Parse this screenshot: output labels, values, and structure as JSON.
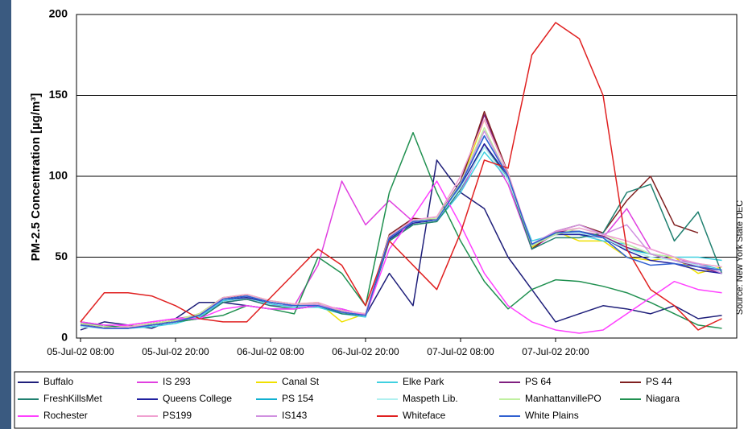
{
  "chart_data": {
    "type": "line",
    "y_label": "PM-2.5 Concentration  [µg/m³]",
    "annotation": "Source: New York State DEC",
    "categories": [
      "05-Jul-02 08:00",
      null,
      null,
      null,
      "05-Jul-02 20:00",
      null,
      null,
      null,
      "06-Jul-02 08:00",
      null,
      null,
      null,
      "06-Jul-02 20:00",
      null,
      null,
      null,
      "07-Jul-02 08:00",
      null,
      null,
      null,
      "07-Jul-02 20:00",
      null,
      null,
      null,
      null,
      null,
      null,
      null
    ],
    "ylim": [
      0,
      200
    ],
    "yticks": [
      0,
      50,
      100,
      150,
      200
    ],
    "grid": true,
    "series": [
      {
        "name": "Buffalo",
        "color": "#1f1f7a",
        "values": [
          5,
          10,
          8,
          6,
          12,
          22,
          22,
          20,
          18,
          18,
          20,
          18,
          14,
          40,
          20,
          110,
          90,
          80,
          50,
          30,
          10,
          15,
          20,
          18,
          15,
          20,
          12,
          14
        ]
      },
      {
        "name": "IS 293",
        "color": "#e040e0",
        "values": [
          8,
          6,
          8,
          10,
          12,
          14,
          22,
          24,
          20,
          20,
          45,
          97,
          70,
          85,
          72,
          73,
          90,
          120,
          95,
          55,
          65,
          65,
          62,
          80,
          55,
          50,
          45,
          40
        ]
      },
      {
        "name": "Canal St",
        "color": "#f0e000",
        "values": [
          9,
          7,
          7,
          9,
          11,
          15,
          25,
          27,
          23,
          21,
          22,
          10,
          15,
          60,
          70,
          72,
          96,
          135,
          102,
          56,
          66,
          60,
          60,
          50,
          48,
          50,
          40,
          44
        ]
      },
      {
        "name": "Elke Park",
        "color": "#40d0e0",
        "values": [
          7,
          6,
          6,
          7,
          9,
          13,
          23,
          25,
          21,
          19,
          19,
          15,
          13,
          60,
          70,
          72,
          90,
          115,
          98,
          60,
          64,
          64,
          60,
          58,
          52,
          50,
          50,
          48
        ]
      },
      {
        "name": "PS 64",
        "color": "#802080",
        "values": [
          8,
          7,
          6,
          8,
          10,
          14,
          24,
          26,
          22,
          20,
          21,
          16,
          14,
          63,
          73,
          74,
          97,
          138,
          101,
          55,
          66,
          66,
          63,
          56,
          52,
          48,
          44,
          40
        ]
      },
      {
        "name": "PS 44",
        "color": "#802020",
        "values": [
          9,
          7,
          6,
          9,
          11,
          15,
          25,
          26,
          22,
          20,
          20,
          17,
          15,
          64,
          74,
          73,
          96,
          140,
          102,
          55,
          66,
          70,
          65,
          85,
          100,
          70,
          65,
          null
        ]
      },
      {
        "name": "FreshKillsMet",
        "color": "#208070",
        "values": [
          10,
          7,
          7,
          8,
          10,
          12,
          22,
          24,
          20,
          18,
          20,
          15,
          14,
          60,
          70,
          72,
          92,
          120,
          98,
          55,
          62,
          62,
          65,
          90,
          95,
          60,
          78,
          40
        ]
      },
      {
        "name": "Queens College",
        "color": "#2020a0",
        "values": [
          8,
          6,
          6,
          8,
          10,
          14,
          24,
          25,
          22,
          20,
          20,
          16,
          14,
          61,
          71,
          73,
          94,
          120,
          100,
          57,
          64,
          64,
          62,
          54,
          48,
          46,
          42,
          40
        ]
      },
      {
        "name": "PS 154",
        "color": "#10b0d0",
        "values": [
          8,
          6,
          6,
          8,
          10,
          14,
          24,
          26,
          22,
          20,
          20,
          16,
          14,
          62,
          72,
          73,
          95,
          125,
          100,
          58,
          65,
          66,
          62,
          55,
          52,
          48,
          46,
          42
        ]
      },
      {
        "name": "Maspeth Lib.",
        "color": "#b0f0f0",
        "values": [
          7,
          6,
          6,
          8,
          10,
          14,
          24,
          26,
          22,
          20,
          20,
          16,
          14,
          62,
          72,
          73,
          93,
          118,
          98,
          58,
          65,
          65,
          62,
          55,
          50,
          48,
          45,
          42
        ]
      },
      {
        "name": "ManhattanvillePO",
        "color": "#c0f0a0",
        "values": [
          9,
          7,
          7,
          9,
          11,
          15,
          25,
          27,
          23,
          21,
          21,
          17,
          15,
          63,
          73,
          74,
          96,
          130,
          100,
          57,
          64,
          68,
          64,
          58,
          52,
          50,
          46,
          44
        ]
      },
      {
        "name": "Niagara",
        "color": "#209050",
        "values": [
          10,
          8,
          6,
          8,
          10,
          12,
          14,
          20,
          18,
          15,
          50,
          40,
          20,
          90,
          127,
          90,
          60,
          35,
          18,
          30,
          36,
          35,
          32,
          28,
          22,
          15,
          8,
          6
        ]
      },
      {
        "name": "Rochester",
        "color": "#ff40ff",
        "values": [
          10,
          8,
          8,
          10,
          12,
          12,
          18,
          20,
          18,
          18,
          20,
          18,
          14,
          55,
          75,
          97,
          70,
          40,
          20,
          10,
          5,
          3,
          5,
          15,
          25,
          35,
          30,
          28
        ]
      },
      {
        "name": "PS199",
        "color": "#f0a0d0",
        "values": [
          8,
          6,
          7,
          8,
          10,
          14,
          25,
          27,
          23,
          21,
          22,
          17,
          15,
          63,
          73,
          75,
          100,
          135,
          102,
          58,
          66,
          68,
          64,
          60,
          55,
          50,
          46,
          44
        ]
      },
      {
        "name": "IS143",
        "color": "#d090e0",
        "values": [
          8,
          6,
          6,
          8,
          10,
          14,
          24,
          26,
          22,
          20,
          21,
          16,
          14,
          62,
          72,
          73,
          95,
          128,
          100,
          58,
          66,
          70,
          64,
          70,
          52,
          48,
          46,
          40
        ]
      },
      {
        "name": "Whiteface",
        "color": "#e02020",
        "values": [
          10,
          28,
          28,
          26,
          20,
          12,
          10,
          10,
          25,
          40,
          55,
          45,
          20,
          60,
          45,
          30,
          65,
          110,
          105,
          175,
          195,
          185,
          150,
          55,
          30,
          20,
          5,
          12
        ]
      },
      {
        "name": "White Plains",
        "color": "#3060d0",
        "values": [
          8,
          6,
          6,
          8,
          10,
          14,
          24,
          26,
          22,
          20,
          20,
          16,
          14,
          62,
          72,
          73,
          95,
          125,
          100,
          58,
          65,
          66,
          62,
          50,
          45,
          46,
          44,
          42
        ]
      }
    ]
  }
}
